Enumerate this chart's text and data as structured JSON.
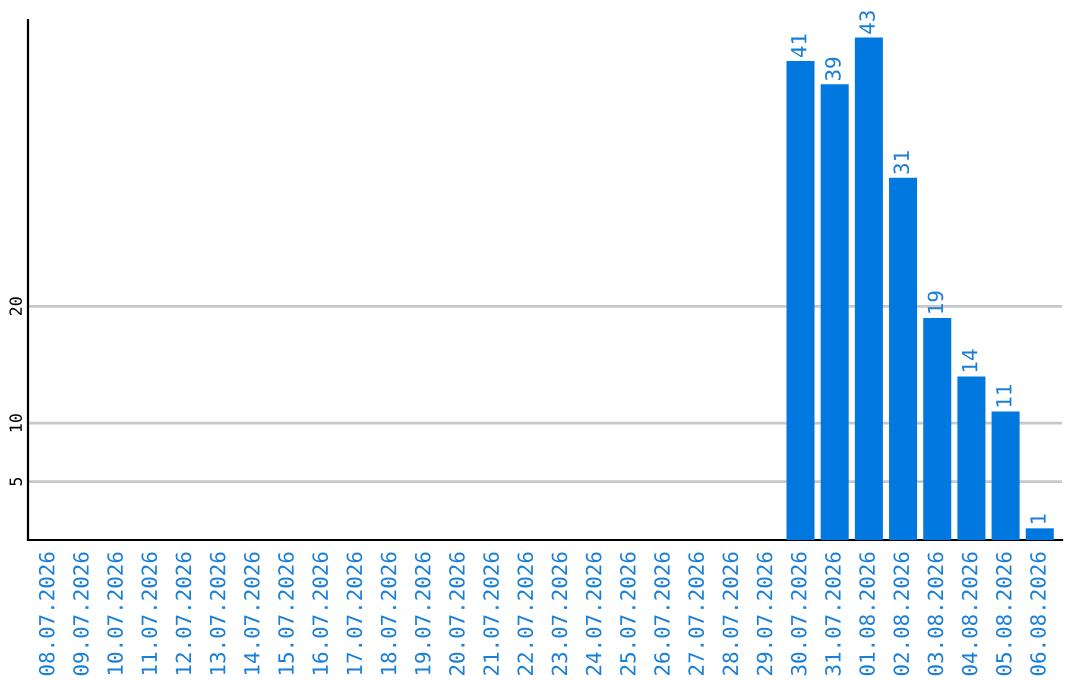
{
  "chart_data": {
    "type": "bar",
    "categories": [
      "08.07.2026",
      "09.07.2026",
      "10.07.2026",
      "11.07.2026",
      "12.07.2026",
      "13.07.2026",
      "14.07.2026",
      "15.07.2026",
      "16.07.2026",
      "17.07.2026",
      "18.07.2026",
      "19.07.2026",
      "20.07.2026",
      "21.07.2026",
      "22.07.2026",
      "23.07.2026",
      "24.07.2026",
      "25.07.2026",
      "26.07.2026",
      "27.07.2026",
      "28.07.2026",
      "29.07.2026",
      "30.07.2026",
      "31.07.2026",
      "01.08.2026",
      "02.08.2026",
      "03.08.2026",
      "04.08.2026",
      "05.08.2026",
      "06.08.2026"
    ],
    "values": [
      0,
      0,
      0,
      0,
      0,
      0,
      0,
      0,
      0,
      0,
      0,
      0,
      0,
      0,
      0,
      0,
      0,
      0,
      0,
      0,
      0,
      0,
      41,
      39,
      43,
      31,
      19,
      14,
      11,
      1
    ],
    "value_labels": [
      null,
      null,
      null,
      null,
      null,
      null,
      null,
      null,
      null,
      null,
      null,
      null,
      null,
      null,
      null,
      null,
      null,
      null,
      null,
      null,
      null,
      null,
      "41",
      "39",
      "43",
      "31",
      "19",
      "14",
      "11",
      "1"
    ],
    "color": "#0078e0",
    "ylim": [
      0,
      44.5
    ],
    "yticks": [
      5,
      10,
      20
    ],
    "grid": "y",
    "legend": false
  }
}
